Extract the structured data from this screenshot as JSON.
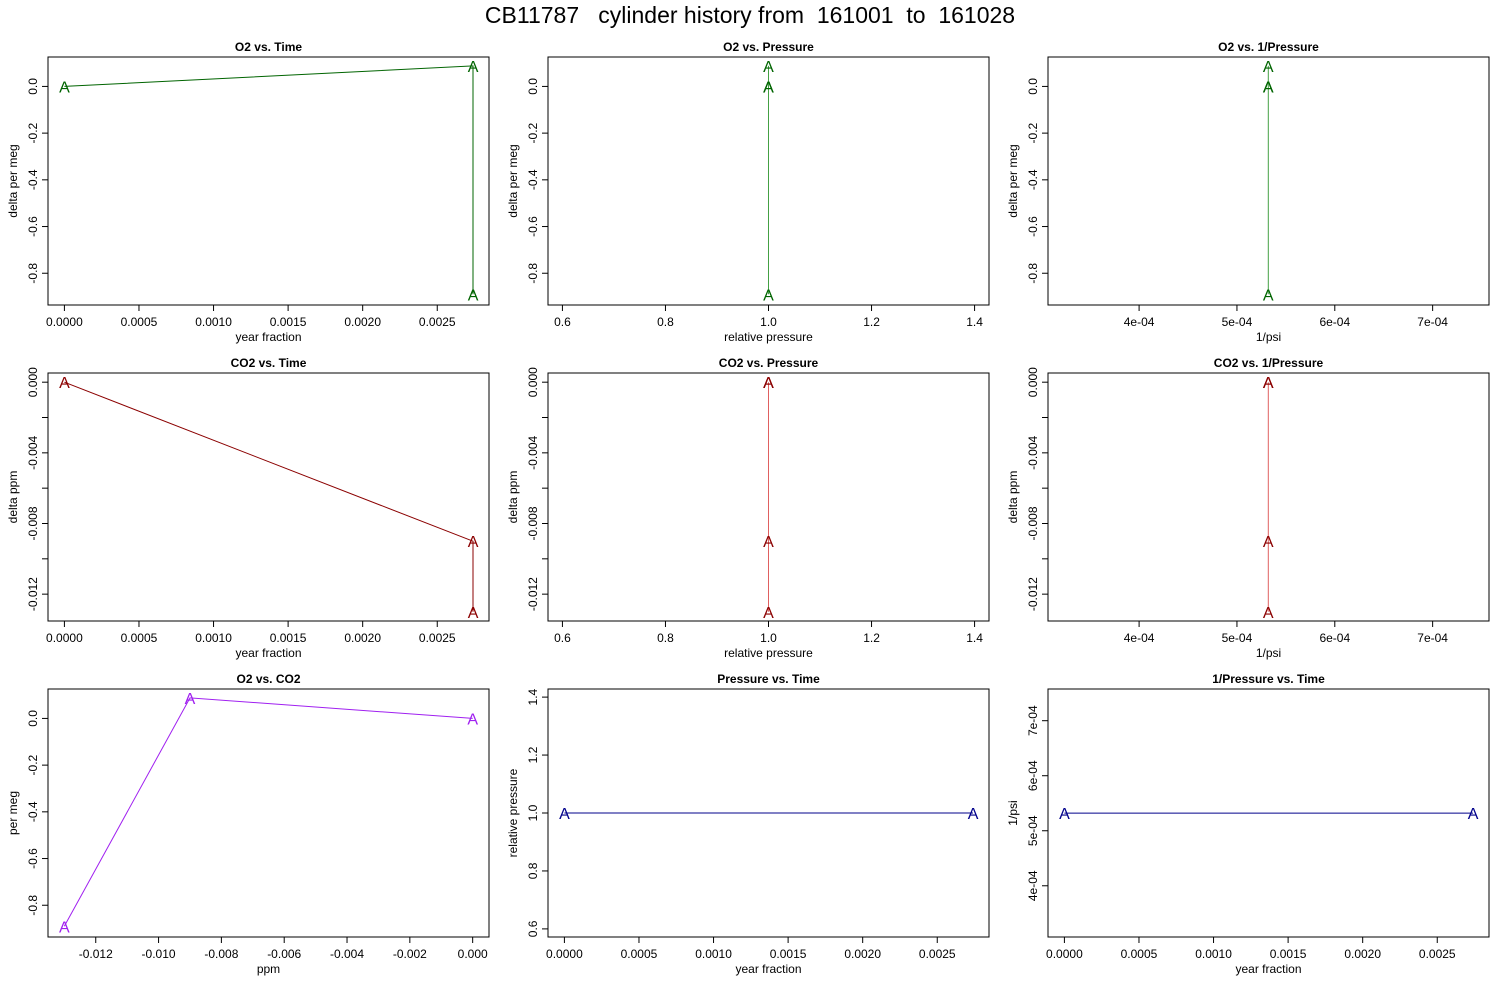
{
  "page_title": "CB11787   cylinder history from  161001  to  161028",
  "chart_data": [
    {
      "type": "line",
      "title": "O2 vs. Time",
      "xlabel": "year fraction",
      "ylabel": "delta per meg",
      "xlim": [
        -0.00011,
        0.002847
      ],
      "ylim": [
        -0.936,
        0.126
      ],
      "x_ticks": [
        0,
        0.0005,
        0.001,
        0.0015,
        0.002,
        0.0025
      ],
      "x_tick_labels": [
        "0.0000",
        "0.0005",
        "0.0010",
        "0.0015",
        "0.0020",
        "0.0025"
      ],
      "y_ticks": [
        0,
        -0.2,
        -0.4,
        -0.6,
        -0.8
      ],
      "y_tick_labels": [
        "0.0",
        "-0.2",
        "-0.4",
        "-0.6",
        "-0.8"
      ],
      "color": "#006400",
      "line_color": "#006400",
      "marker": "A",
      "series": [
        {
          "x": [
            0,
            0.00274,
            0.00274
          ],
          "y": [
            0,
            0.088,
            -0.89
          ]
        }
      ]
    },
    {
      "type": "line",
      "title": "O2 vs. Pressure",
      "xlabel": "relative pressure",
      "ylabel": "delta per meg",
      "xlim": [
        0.572,
        1.428
      ],
      "ylim": [
        -0.936,
        0.126
      ],
      "x_ticks": [
        0.6,
        0.8,
        1.0,
        1.2,
        1.4
      ],
      "x_tick_labels": [
        "0.6",
        "0.8",
        "1.0",
        "1.2",
        "1.4"
      ],
      "y_ticks": [
        0,
        -0.2,
        -0.4,
        -0.6,
        -0.8
      ],
      "y_tick_labels": [
        "0.0",
        "-0.2",
        "-0.4",
        "-0.6",
        "-0.8"
      ],
      "color": "#006400",
      "line_color": "#44a044",
      "marker": "A",
      "series": [
        {
          "x": [
            1.0,
            1.0,
            1.0,
            1.0
          ],
          "y": [
            0,
            0.088,
            -0.89,
            0
          ]
        }
      ]
    },
    {
      "type": "line",
      "title": "O2 vs. 1/Pressure",
      "xlabel": "1/psi",
      "ylabel": "delta per meg",
      "xlim": [
        0.0003069,
        0.0007576
      ],
      "ylim": [
        -0.936,
        0.126
      ],
      "x_ticks": [
        0.0004,
        0.0005,
        0.0006,
        0.0007
      ],
      "x_tick_labels": [
        "4e-04",
        "5e-04",
        "6e-04",
        "7e-04"
      ],
      "y_ticks": [
        0,
        -0.2,
        -0.4,
        -0.6,
        -0.8
      ],
      "y_tick_labels": [
        "0.0",
        "-0.2",
        "-0.4",
        "-0.6",
        "-0.8"
      ],
      "color": "#006400",
      "line_color": "#44a044",
      "marker": "A",
      "series": [
        {
          "x": [
            0.000532,
            0.000532,
            0.000532,
            0.000532
          ],
          "y": [
            0,
            0.088,
            -0.89,
            0
          ]
        }
      ]
    },
    {
      "type": "line",
      "title": "CO2 vs. Time",
      "xlabel": "year fraction",
      "ylabel": "delta ppm",
      "xlim": [
        -0.00011,
        0.002847
      ],
      "ylim": [
        -0.01352,
        0.00052
      ],
      "x_ticks": [
        0,
        0.0005,
        0.001,
        0.0015,
        0.002,
        0.0025
      ],
      "x_tick_labels": [
        "0.0000",
        "0.0005",
        "0.0010",
        "0.0015",
        "0.0020",
        "0.0025"
      ],
      "y_ticks": [
        0,
        -0.002,
        -0.004,
        -0.006,
        -0.008,
        -0.01,
        -0.012
      ],
      "y_tick_labels": [
        "0.000",
        "",
        "-0.004",
        "",
        "-0.008",
        "",
        "-0.012"
      ],
      "color": "#8b0000",
      "line_color": "#8b0000",
      "marker": "A",
      "series": [
        {
          "x": [
            0,
            0.00274,
            0.00274
          ],
          "y": [
            0,
            -0.009,
            -0.013
          ]
        }
      ]
    },
    {
      "type": "line",
      "title": "CO2 vs. Pressure",
      "xlabel": "relative pressure",
      "ylabel": "delta ppm",
      "xlim": [
        0.572,
        1.428
      ],
      "ylim": [
        -0.01352,
        0.00052
      ],
      "x_ticks": [
        0.6,
        0.8,
        1.0,
        1.2,
        1.4
      ],
      "x_tick_labels": [
        "0.6",
        "0.8",
        "1.0",
        "1.2",
        "1.4"
      ],
      "y_ticks": [
        0,
        -0.002,
        -0.004,
        -0.006,
        -0.008,
        -0.01,
        -0.012
      ],
      "y_tick_labels": [
        "0.000",
        "",
        "-0.004",
        "",
        "-0.008",
        "",
        "-0.012"
      ],
      "color": "#8b0000",
      "line_color": "#e06060",
      "marker": "A",
      "series": [
        {
          "x": [
            1.0,
            1.0,
            1.0,
            1.0
          ],
          "y": [
            0,
            0,
            -0.009,
            -0.013
          ]
        }
      ]
    },
    {
      "type": "line",
      "title": "CO2 vs. 1/Pressure",
      "xlabel": "1/psi",
      "ylabel": "delta ppm",
      "xlim": [
        0.0003069,
        0.0007576
      ],
      "ylim": [
        -0.01352,
        0.00052
      ],
      "x_ticks": [
        0.0004,
        0.0005,
        0.0006,
        0.0007
      ],
      "x_tick_labels": [
        "4e-04",
        "5e-04",
        "6e-04",
        "7e-04"
      ],
      "y_ticks": [
        0,
        -0.002,
        -0.004,
        -0.006,
        -0.008,
        -0.01,
        -0.012
      ],
      "y_tick_labels": [
        "0.000",
        "",
        "-0.004",
        "",
        "-0.008",
        "",
        "-0.012"
      ],
      "color": "#8b0000",
      "line_color": "#e06060",
      "marker": "A",
      "series": [
        {
          "x": [
            0.000532,
            0.000532,
            0.000532,
            0.000532
          ],
          "y": [
            0,
            0,
            -0.009,
            -0.013
          ]
        }
      ]
    },
    {
      "type": "line",
      "title": "O2 vs. CO2",
      "xlabel": "ppm",
      "ylabel": "per meg",
      "xlim": [
        -0.01352,
        0.00052
      ],
      "ylim": [
        -0.936,
        0.126
      ],
      "x_ticks": [
        -0.012,
        -0.01,
        -0.008,
        -0.006,
        -0.004,
        -0.002,
        0
      ],
      "x_tick_labels": [
        "-0.012",
        "-0.010",
        "-0.008",
        "-0.006",
        "-0.004",
        "-0.002",
        "0.000"
      ],
      "y_ticks": [
        0,
        -0.2,
        -0.4,
        -0.6,
        -0.8
      ],
      "y_tick_labels": [
        "0.0",
        "-0.2",
        "-0.4",
        "-0.6",
        "-0.8"
      ],
      "color": "#a020f0",
      "line_color": "#a020f0",
      "marker": "A",
      "series": [
        {
          "x": [
            -0.013,
            -0.009,
            0
          ],
          "y": [
            -0.89,
            0.088,
            0
          ]
        }
      ]
    },
    {
      "type": "line",
      "title": "Pressure vs. Time",
      "xlabel": "year fraction",
      "ylabel": "relative pressure",
      "xlim": [
        -0.00011,
        0.002847
      ],
      "ylim": [
        0.572,
        1.428
      ],
      "x_ticks": [
        0,
        0.0005,
        0.001,
        0.0015,
        0.002,
        0.0025
      ],
      "x_tick_labels": [
        "0.0000",
        "0.0005",
        "0.0010",
        "0.0015",
        "0.0020",
        "0.0025"
      ],
      "y_ticks": [
        0.6,
        0.8,
        1.0,
        1.2,
        1.4
      ],
      "y_tick_labels": [
        "0.6",
        "0.8",
        "1.0",
        "1.2",
        "1.4"
      ],
      "color": "#00008b",
      "line_color": "#00008b",
      "marker": "A",
      "series": [
        {
          "x": [
            0,
            0.00274
          ],
          "y": [
            1.0,
            1.0
          ]
        }
      ]
    },
    {
      "type": "line",
      "title": "1/Pressure vs. Time",
      "xlabel": "year fraction",
      "ylabel": "1/psi",
      "xlim": [
        -0.00011,
        0.002847
      ],
      "ylim": [
        0.0003069,
        0.0007576
      ],
      "x_ticks": [
        0,
        0.0005,
        0.001,
        0.0015,
        0.002,
        0.0025
      ],
      "x_tick_labels": [
        "0.0000",
        "0.0005",
        "0.0010",
        "0.0015",
        "0.0020",
        "0.0025"
      ],
      "y_ticks": [
        0.0004,
        0.0005,
        0.0006,
        0.0007
      ],
      "y_tick_labels": [
        "4e-04",
        "5e-04",
        "6e-04",
        "7e-04"
      ],
      "color": "#00008b",
      "line_color": "#00008b",
      "marker": "A",
      "series": [
        {
          "x": [
            0,
            0.00274
          ],
          "y": [
            0.000532,
            0.000532
          ]
        }
      ]
    }
  ]
}
